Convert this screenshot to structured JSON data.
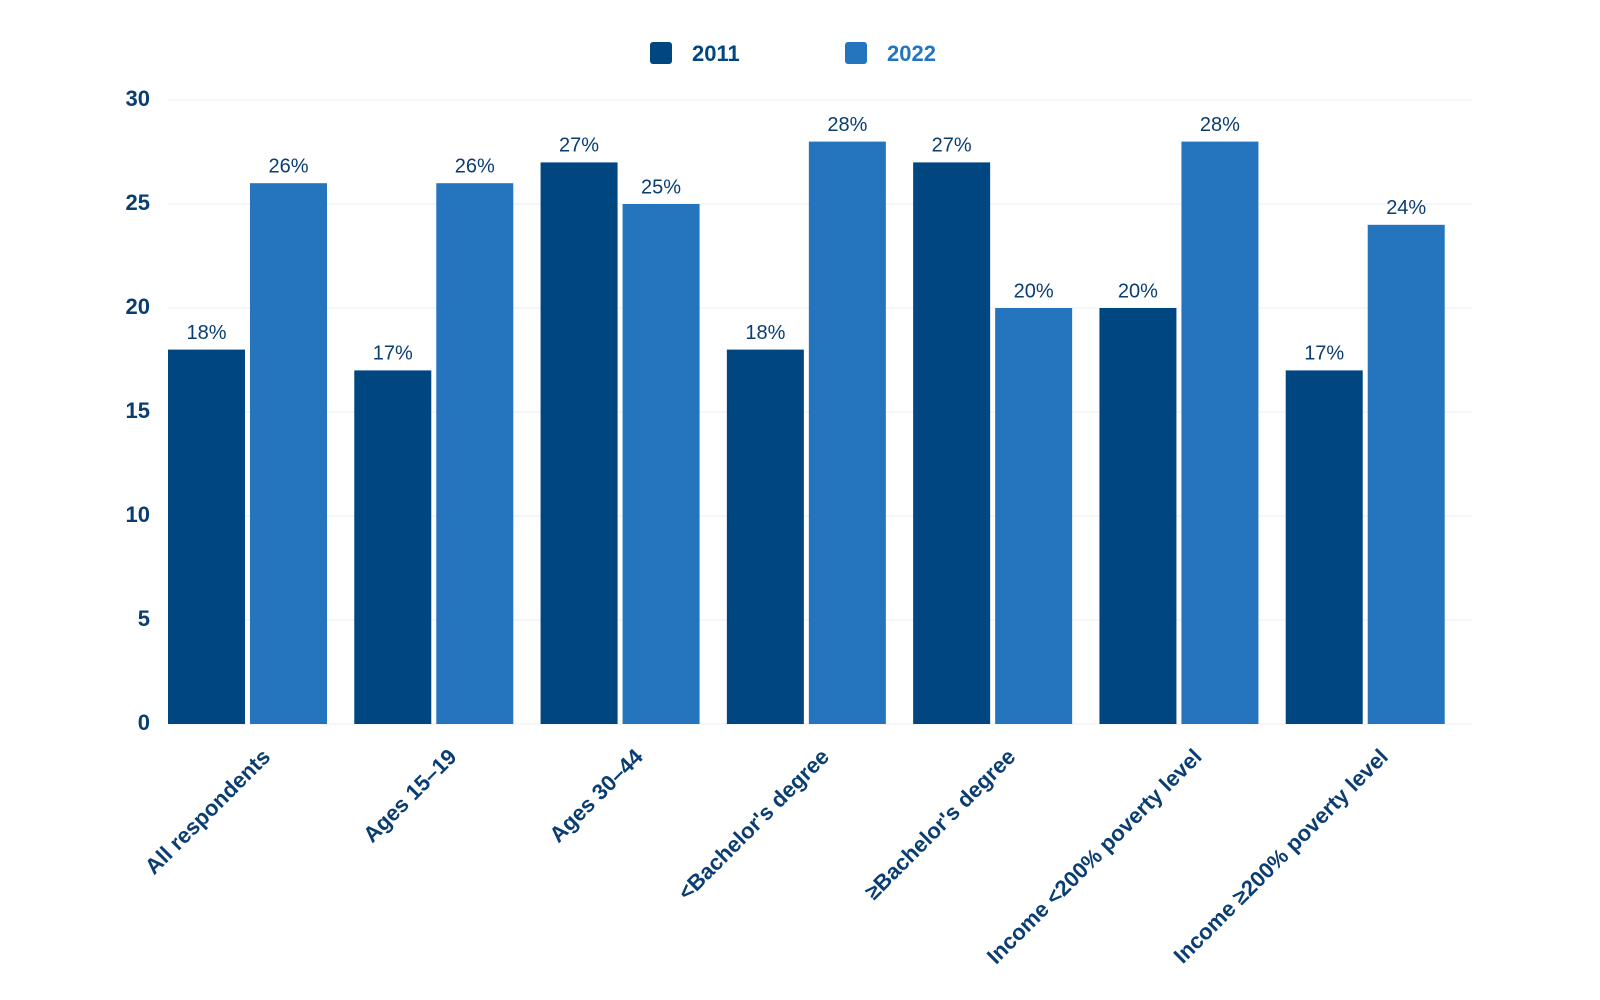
{
  "chart_data": {
    "type": "bar",
    "categories": [
      "All respondents",
      "Ages 15–19",
      "Ages 30–44",
      "<Bachelor's degree",
      "≥Bachelor's degree",
      "Income <200% poverty level",
      "Income ≥200% poverty level"
    ],
    "series": [
      {
        "name": "2011",
        "color": "#004680",
        "values": [
          18,
          17,
          27,
          18,
          27,
          20,
          17
        ],
        "value_labels": [
          "18%",
          "17%",
          "27%",
          "18%",
          "27%",
          "20%",
          "17%"
        ]
      },
      {
        "name": "2022",
        "color": "#2475bd",
        "values": [
          26,
          26,
          25,
          28,
          20,
          28,
          24
        ],
        "value_labels": [
          "26%",
          "26%",
          "25%",
          "28%",
          "20%",
          "28%",
          "24%"
        ]
      }
    ],
    "ylim": [
      0,
      30
    ],
    "yticks": [
      0,
      5,
      10,
      15,
      20,
      25,
      30
    ],
    "grid": true,
    "legend": "top"
  }
}
